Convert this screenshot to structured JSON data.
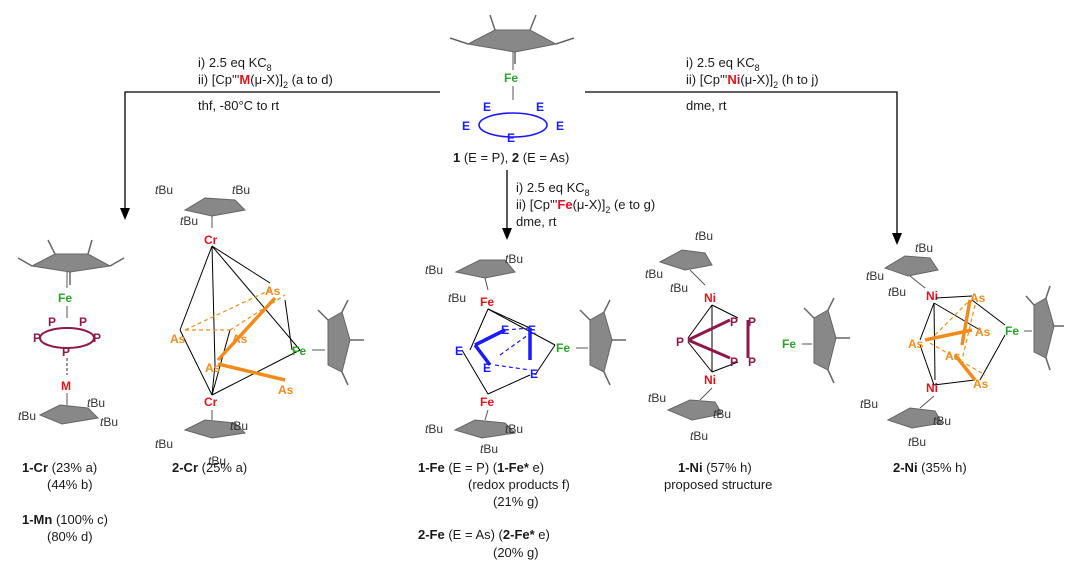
{
  "top": {
    "fe": "Fe",
    "e": "E",
    "label": [
      "1",
      " (E = P), ",
      "2",
      " (E = As)"
    ]
  },
  "left_arrow": {
    "line1": [
      "i) 2.5 eq KC",
      "8"
    ],
    "line2": [
      "ii) [Cp'''",
      "M",
      "(μ-X)]",
      "2",
      " (a to d)"
    ],
    "line3": "thf, -80°C to rt"
  },
  "right_arrow": {
    "line1": [
      "i) 2.5 eq KC",
      "8"
    ],
    "line2": [
      "ii) [Cp'''",
      "Ni",
      "(μ-X)]",
      "2",
      " (h to j)"
    ],
    "line3": "dme, rt"
  },
  "mid_arrow": {
    "line1": [
      "i) 2.5 eq KC",
      "8"
    ],
    "line2": [
      "ii) [Cp'''",
      "Fe",
      "(μ-X)]",
      "2",
      " (e to g)"
    ],
    "line3": "dme, rt"
  },
  "atoms": {
    "fe": "Fe",
    "p": "P",
    "as": "As",
    "cr": "Cr",
    "ni": "Ni",
    "m": "M",
    "e": "E",
    "tbu": "tBu"
  },
  "captions": {
    "c1cr": [
      "1-Cr",
      " (23% a)"
    ],
    "c1cr_b": "(44% b)",
    "c1mn": [
      "1-Mn",
      " (100% c)"
    ],
    "c1mn_d": "(80% d)",
    "c2cr": [
      "2-Cr",
      " (25% a)"
    ],
    "c1fe": [
      "1-Fe",
      " (E = P) (",
      "1-Fe*",
      " e)"
    ],
    "c1fe_f": "(redox products f)",
    "c1fe_g": "(21% g)",
    "c2fe": [
      "2-Fe",
      " (E = As) (",
      "2-Fe*",
      " e)"
    ],
    "c2fe_g": "(20% g)",
    "c1ni": [
      "1-Ni",
      " (57% h)"
    ],
    "c1ni_p": "proposed structure",
    "c2ni": [
      "2-Ni",
      " (35% h)"
    ]
  },
  "colors": {
    "fe": "#2e9e2e",
    "e": "#1a1aff",
    "p": "#8b1a4a",
    "as": "#f08c1e",
    "metal": "#e0141e",
    "cp": "#888888"
  }
}
